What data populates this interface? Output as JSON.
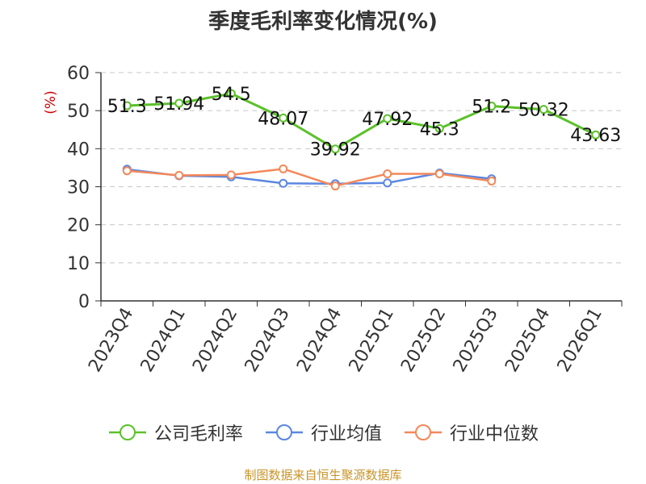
{
  "chart_data": {
    "type": "line",
    "title": "季度毛利率变化情况(%)",
    "ylabel": "(%)",
    "xlabel": "",
    "categories": [
      "2023Q4",
      "2024Q1",
      "2024Q2",
      "2024Q3",
      "2024Q4",
      "2025Q1",
      "2025Q2",
      "2025Q3",
      "2025Q4",
      "2026Q1"
    ],
    "ylim": [
      0,
      60
    ],
    "yticks": [
      0,
      10,
      20,
      30,
      40,
      50,
      60
    ],
    "grid": true,
    "legend_position": "bottom",
    "series": [
      {
        "name": "公司毛利率",
        "color": "#5bc12a",
        "values": [
          51.3,
          51.94,
          54.5,
          48.07,
          39.92,
          47.92,
          45.3,
          51.2,
          50.32,
          43.63
        ],
        "labels": [
          "51.3",
          "51.94",
          "54.5",
          "48.07",
          "39.92",
          "47.92",
          "45.3",
          "51.2",
          "50.32",
          "43.63"
        ]
      },
      {
        "name": "行业均值",
        "color": "#5b87e0",
        "values": [
          34.6,
          32.9,
          32.6,
          30.9,
          30.8,
          31.0,
          33.6,
          32.1,
          null,
          null
        ]
      },
      {
        "name": "行业中位数",
        "color": "#f4885a",
        "values": [
          34.2,
          33.0,
          33.1,
          34.7,
          30.2,
          33.4,
          33.4,
          31.5,
          null,
          null
        ]
      }
    ],
    "source": "制图数据来自恒生聚源数据库"
  }
}
